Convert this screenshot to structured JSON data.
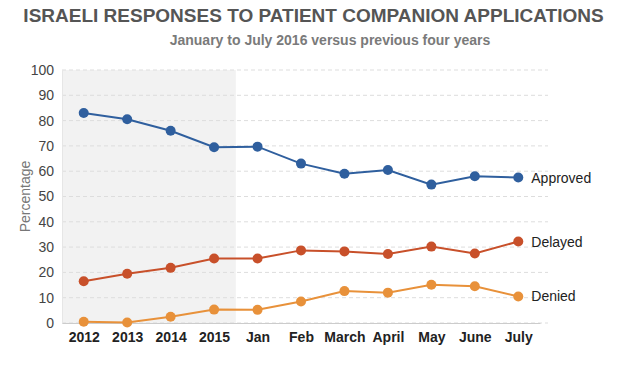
{
  "chart_data": {
    "type": "line",
    "title": "ISRAELI RESPONSES TO PATIENT COMPANION APPLICATIONS",
    "subtitle": "January to July 2016 versus previous four years",
    "y_label": "Percentage",
    "categories": [
      "2012",
      "2013",
      "2014",
      "2015",
      "Jan",
      "Feb",
      "March",
      "April",
      "May",
      "June",
      "July"
    ],
    "series": [
      {
        "name": "Approved",
        "color": "#2f5f9e",
        "values": [
          83,
          80.5,
          76,
          69.5,
          69.7,
          63,
          59,
          60.5,
          54.7,
          58,
          57.5
        ]
      },
      {
        "name": "Delayed",
        "color": "#c8502a",
        "values": [
          16.5,
          19.5,
          21.8,
          25.5,
          25.5,
          28.7,
          28.3,
          27.3,
          30.2,
          27.5,
          32.2
        ]
      },
      {
        "name": "Denied",
        "color": "#e8913a",
        "values": [
          0.5,
          0.2,
          2.5,
          5.3,
          5.2,
          8.5,
          12.6,
          12,
          15.1,
          14.5,
          10.5
        ]
      }
    ],
    "ylim": [
      0,
      100
    ],
    "yticks": [
      0,
      10,
      20,
      30,
      40,
      50,
      60,
      70,
      80,
      90,
      100
    ],
    "grid": true,
    "marker": "circle"
  }
}
